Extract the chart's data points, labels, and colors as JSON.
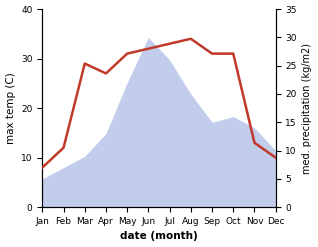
{
  "months": [
    "Jan",
    "Feb",
    "Mar",
    "Apr",
    "May",
    "Jun",
    "Jul",
    "Aug",
    "Sep",
    "Oct",
    "Nov",
    "Dec"
  ],
  "temperature": [
    8,
    12,
    29,
    27,
    31,
    32,
    33,
    34,
    31,
    31,
    13,
    10
  ],
  "precipitation": [
    5,
    7,
    9,
    13,
    22,
    30,
    26,
    20,
    15,
    16,
    14,
    10
  ],
  "temp_color": "#c0392b",
  "precip_fill_color": "#b8c4e8",
  "temp_ylim": [
    0,
    40
  ],
  "precip_ylim": [
    0,
    35
  ],
  "temp_yticks": [
    0,
    10,
    20,
    30,
    40
  ],
  "precip_yticks": [
    0,
    5,
    10,
    15,
    20,
    25,
    30,
    35
  ],
  "xlabel": "date (month)",
  "ylabel_left": "max temp (C)",
  "ylabel_right": "med. precipitation (kg/m2)",
  "label_fontsize": 7.5,
  "tick_fontsize": 6.5
}
